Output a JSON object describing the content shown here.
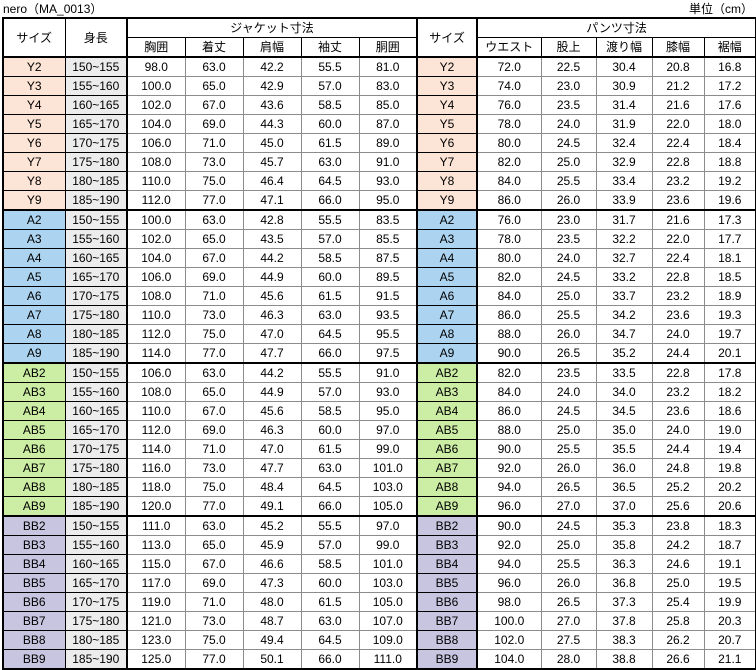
{
  "header": {
    "title": "nero（MA_0013）",
    "unit": "単位（cm）"
  },
  "table": {
    "size_header": "サイズ",
    "height_header": "身長",
    "jacket_section": "ジャケット寸法",
    "size_header_right": "サイズ",
    "pants_section": "パンツ寸法",
    "jacket_columns": [
      "胸囲",
      "着丈",
      "肩幅",
      "袖丈",
      "胴囲"
    ],
    "pants_columns": [
      "ウエスト",
      "股上",
      "渡り幅",
      "膝幅",
      "裾幅"
    ],
    "groups": [
      {
        "id": "Y",
        "color": "#FCE4D6",
        "rows": [
          {
            "size": "Y2",
            "height": "150~155",
            "jacket": [
              "98.0",
              "63.0",
              "42.2",
              "55.5",
              "81.0"
            ],
            "pants": [
              "72.0",
              "22.5",
              "30.4",
              "20.8",
              "16.8"
            ]
          },
          {
            "size": "Y3",
            "height": "155~160",
            "jacket": [
              "100.0",
              "65.0",
              "42.9",
              "57.0",
              "83.0"
            ],
            "pants": [
              "74.0",
              "23.0",
              "30.9",
              "21.2",
              "17.2"
            ]
          },
          {
            "size": "Y4",
            "height": "160~165",
            "jacket": [
              "102.0",
              "67.0",
              "43.6",
              "58.5",
              "85.0"
            ],
            "pants": [
              "76.0",
              "23.5",
              "31.4",
              "21.6",
              "17.6"
            ]
          },
          {
            "size": "Y5",
            "height": "165~170",
            "jacket": [
              "104.0",
              "69.0",
              "44.3",
              "60.0",
              "87.0"
            ],
            "pants": [
              "78.0",
              "24.0",
              "31.9",
              "22.0",
              "18.0"
            ]
          },
          {
            "size": "Y6",
            "height": "170~175",
            "jacket": [
              "106.0",
              "71.0",
              "45.0",
              "61.5",
              "89.0"
            ],
            "pants": [
              "80.0",
              "24.5",
              "32.4",
              "22.4",
              "18.4"
            ]
          },
          {
            "size": "Y7",
            "height": "175~180",
            "jacket": [
              "108.0",
              "73.0",
              "45.7",
              "63.0",
              "91.0"
            ],
            "pants": [
              "82.0",
              "25.0",
              "32.9",
              "22.8",
              "18.8"
            ]
          },
          {
            "size": "Y8",
            "height": "180~185",
            "jacket": [
              "110.0",
              "75.0",
              "46.4",
              "64.5",
              "93.0"
            ],
            "pants": [
              "84.0",
              "25.5",
              "33.4",
              "23.2",
              "19.2"
            ]
          },
          {
            "size": "Y9",
            "height": "185~190",
            "jacket": [
              "112.0",
              "77.0",
              "47.1",
              "66.0",
              "95.0"
            ],
            "pants": [
              "86.0",
              "26.0",
              "33.9",
              "23.6",
              "19.6"
            ]
          }
        ]
      },
      {
        "id": "A",
        "color": "#ACD4F0",
        "rows": [
          {
            "size": "A2",
            "height": "150~155",
            "jacket": [
              "100.0",
              "63.0",
              "42.8",
              "55.5",
              "83.5"
            ],
            "pants": [
              "76.0",
              "23.0",
              "31.7",
              "21.6",
              "17.3"
            ]
          },
          {
            "size": "A3",
            "height": "155~160",
            "jacket": [
              "102.0",
              "65.0",
              "43.5",
              "57.0",
              "85.5"
            ],
            "pants": [
              "78.0",
              "23.5",
              "32.2",
              "22.0",
              "17.7"
            ]
          },
          {
            "size": "A4",
            "height": "160~165",
            "jacket": [
              "104.0",
              "67.0",
              "44.2",
              "58.5",
              "87.5"
            ],
            "pants": [
              "80.0",
              "24.0",
              "32.7",
              "22.4",
              "18.1"
            ]
          },
          {
            "size": "A5",
            "height": "165~170",
            "jacket": [
              "106.0",
              "69.0",
              "44.9",
              "60.0",
              "89.5"
            ],
            "pants": [
              "82.0",
              "24.5",
              "33.2",
              "22.8",
              "18.5"
            ]
          },
          {
            "size": "A6",
            "height": "170~175",
            "jacket": [
              "108.0",
              "71.0",
              "45.6",
              "61.5",
              "91.5"
            ],
            "pants": [
              "84.0",
              "25.0",
              "33.7",
              "23.2",
              "18.9"
            ]
          },
          {
            "size": "A7",
            "height": "175~180",
            "jacket": [
              "110.0",
              "73.0",
              "46.3",
              "63.0",
              "93.5"
            ],
            "pants": [
              "86.0",
              "25.5",
              "34.2",
              "23.6",
              "19.3"
            ]
          },
          {
            "size": "A8",
            "height": "180~185",
            "jacket": [
              "112.0",
              "75.0",
              "47.0",
              "64.5",
              "95.5"
            ],
            "pants": [
              "88.0",
              "26.0",
              "34.7",
              "24.0",
              "19.7"
            ]
          },
          {
            "size": "A9",
            "height": "185~190",
            "jacket": [
              "114.0",
              "77.0",
              "47.7",
              "66.0",
              "97.5"
            ],
            "pants": [
              "90.0",
              "26.5",
              "35.2",
              "24.4",
              "20.1"
            ]
          }
        ]
      },
      {
        "id": "AB",
        "color": "#CCEDA4",
        "rows": [
          {
            "size": "AB2",
            "height": "150~155",
            "jacket": [
              "106.0",
              "63.0",
              "44.2",
              "55.5",
              "91.0"
            ],
            "pants": [
              "82.0",
              "23.5",
              "33.5",
              "22.8",
              "17.8"
            ]
          },
          {
            "size": "AB3",
            "height": "155~160",
            "jacket": [
              "108.0",
              "65.0",
              "44.9",
              "57.0",
              "93.0"
            ],
            "pants": [
              "84.0",
              "24.0",
              "34.0",
              "23.2",
              "18.2"
            ]
          },
          {
            "size": "AB4",
            "height": "160~165",
            "jacket": [
              "110.0",
              "67.0",
              "45.6",
              "58.5",
              "95.0"
            ],
            "pants": [
              "86.0",
              "24.5",
              "34.5",
              "23.6",
              "18.6"
            ]
          },
          {
            "size": "AB5",
            "height": "165~170",
            "jacket": [
              "112.0",
              "69.0",
              "46.3",
              "60.0",
              "97.0"
            ],
            "pants": [
              "88.0",
              "25.0",
              "35.0",
              "24.0",
              "19.0"
            ]
          },
          {
            "size": "AB6",
            "height": "170~175",
            "jacket": [
              "114.0",
              "71.0",
              "47.0",
              "61.5",
              "99.0"
            ],
            "pants": [
              "90.0",
              "25.5",
              "35.5",
              "24.4",
              "19.4"
            ]
          },
          {
            "size": "AB7",
            "height": "175~180",
            "jacket": [
              "116.0",
              "73.0",
              "47.7",
              "63.0",
              "101.0"
            ],
            "pants": [
              "92.0",
              "26.0",
              "36.0",
              "24.8",
              "19.8"
            ]
          },
          {
            "size": "AB8",
            "height": "180~185",
            "jacket": [
              "118.0",
              "75.0",
              "48.4",
              "64.5",
              "103.0"
            ],
            "pants": [
              "94.0",
              "26.5",
              "36.5",
              "25.2",
              "20.2"
            ]
          },
          {
            "size": "AB9",
            "height": "185~190",
            "jacket": [
              "120.0",
              "77.0",
              "49.1",
              "66.0",
              "105.0"
            ],
            "pants": [
              "96.0",
              "27.0",
              "37.0",
              "25.6",
              "20.6"
            ]
          }
        ]
      },
      {
        "id": "BB",
        "color": "#C7C5E0",
        "rows": [
          {
            "size": "BB2",
            "height": "150~155",
            "jacket": [
              "111.0",
              "63.0",
              "45.2",
              "55.5",
              "97.0"
            ],
            "pants": [
              "90.0",
              "24.5",
              "35.3",
              "23.8",
              "18.3"
            ]
          },
          {
            "size": "BB3",
            "height": "155~160",
            "jacket": [
              "113.0",
              "65.0",
              "45.9",
              "57.0",
              "99.0"
            ],
            "pants": [
              "92.0",
              "25.0",
              "35.8",
              "24.2",
              "18.7"
            ]
          },
          {
            "size": "BB4",
            "height": "160~165",
            "jacket": [
              "115.0",
              "67.0",
              "46.6",
              "58.5",
              "101.0"
            ],
            "pants": [
              "94.0",
              "25.5",
              "36.3",
              "24.6",
              "19.1"
            ]
          },
          {
            "size": "BB5",
            "height": "165~170",
            "jacket": [
              "117.0",
              "69.0",
              "47.3",
              "60.0",
              "103.0"
            ],
            "pants": [
              "96.0",
              "26.0",
              "36.8",
              "25.0",
              "19.5"
            ]
          },
          {
            "size": "BB6",
            "height": "170~175",
            "jacket": [
              "119.0",
              "71.0",
              "48.0",
              "61.5",
              "105.0"
            ],
            "pants": [
              "98.0",
              "26.5",
              "37.3",
              "25.4",
              "19.9"
            ]
          },
          {
            "size": "BB7",
            "height": "175~180",
            "jacket": [
              "121.0",
              "73.0",
              "48.7",
              "63.0",
              "107.0"
            ],
            "pants": [
              "100.0",
              "27.0",
              "37.8",
              "25.8",
              "20.3"
            ]
          },
          {
            "size": "BB8",
            "height": "180~185",
            "jacket": [
              "123.0",
              "75.0",
              "49.4",
              "64.5",
              "109.0"
            ],
            "pants": [
              "102.0",
              "27.5",
              "38.3",
              "26.2",
              "20.7"
            ]
          },
          {
            "size": "BB9",
            "height": "185~190",
            "jacket": [
              "125.0",
              "77.0",
              "50.1",
              "66.0",
              "111.0"
            ],
            "pants": [
              "104.0",
              "28.0",
              "38.8",
              "26.6",
              "21.1"
            ]
          }
        ]
      }
    ]
  }
}
